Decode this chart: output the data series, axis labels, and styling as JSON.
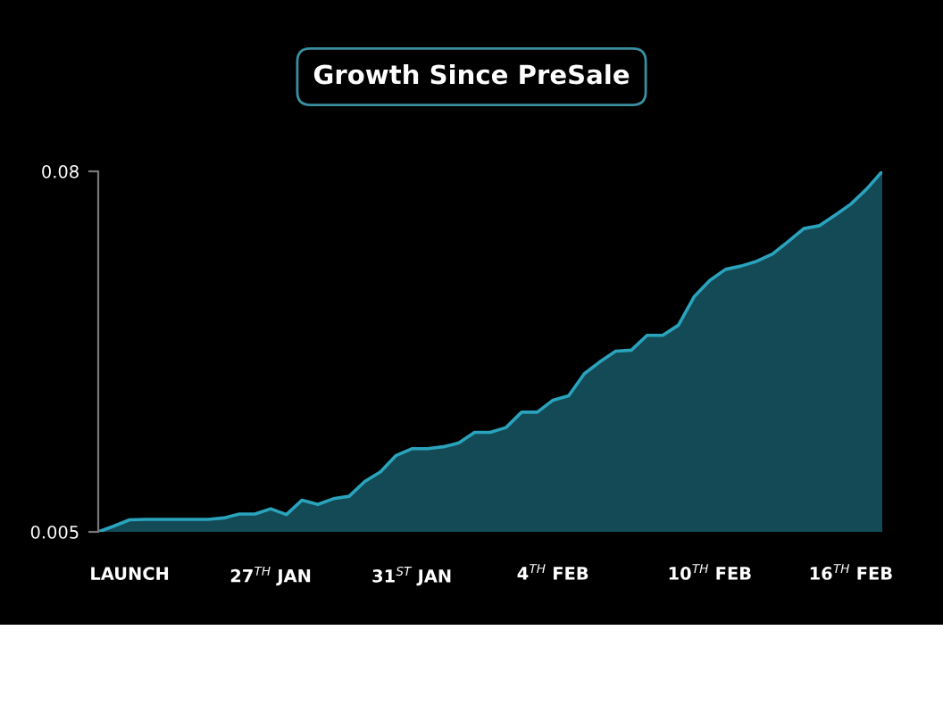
{
  "chart_data": {
    "type": "area",
    "title": "Growth Since PreSale",
    "categories": [
      null,
      null,
      "LAUNCH",
      null,
      null,
      null,
      null,
      null,
      null,
      null,
      null,
      "27$^{TH}$ JAN",
      null,
      null,
      null,
      null,
      null,
      null,
      null,
      null,
      "31$^{ST}$ JAN",
      null,
      null,
      null,
      null,
      null,
      null,
      null,
      null,
      "4$^{TH}$ FEB",
      null,
      null,
      null,
      null,
      null,
      null,
      null,
      null,
      null,
      "10$^{TH}$ FEB",
      null,
      null,
      null,
      null,
      null,
      null,
      null,
      null,
      "16$^{TH}$ FEB",
      null,
      null
    ],
    "series": [
      {
        "color": "#2aa3bd",
        "values": [
          0.005,
          0.0062,
          0.0075,
          0.0076,
          0.0076,
          0.0076,
          0.0076,
          0.0076,
          0.0079,
          0.0087,
          0.0087,
          0.0098,
          0.0086,
          0.0116,
          0.0107,
          0.0119,
          0.0124,
          0.0155,
          0.0175,
          0.0209,
          0.0223,
          0.0223,
          0.0227,
          0.0235,
          0.0257,
          0.0257,
          0.0267,
          0.0299,
          0.0299,
          0.0324,
          0.0333,
          0.0379,
          0.0404,
          0.0426,
          0.0428,
          0.0459,
          0.0459,
          0.048,
          0.0539,
          0.0573,
          0.0596,
          0.0603,
          0.0613,
          0.0628,
          0.0654,
          0.0681,
          0.0687,
          0.0709,
          0.0732,
          0.0763,
          0.08
        ]
      }
    ],
    "ylim": [
      0.005,
      0.08
    ],
    "yticks": [
      0.005,
      0.08
    ],
    "grid": false,
    "legend": false
  }
}
